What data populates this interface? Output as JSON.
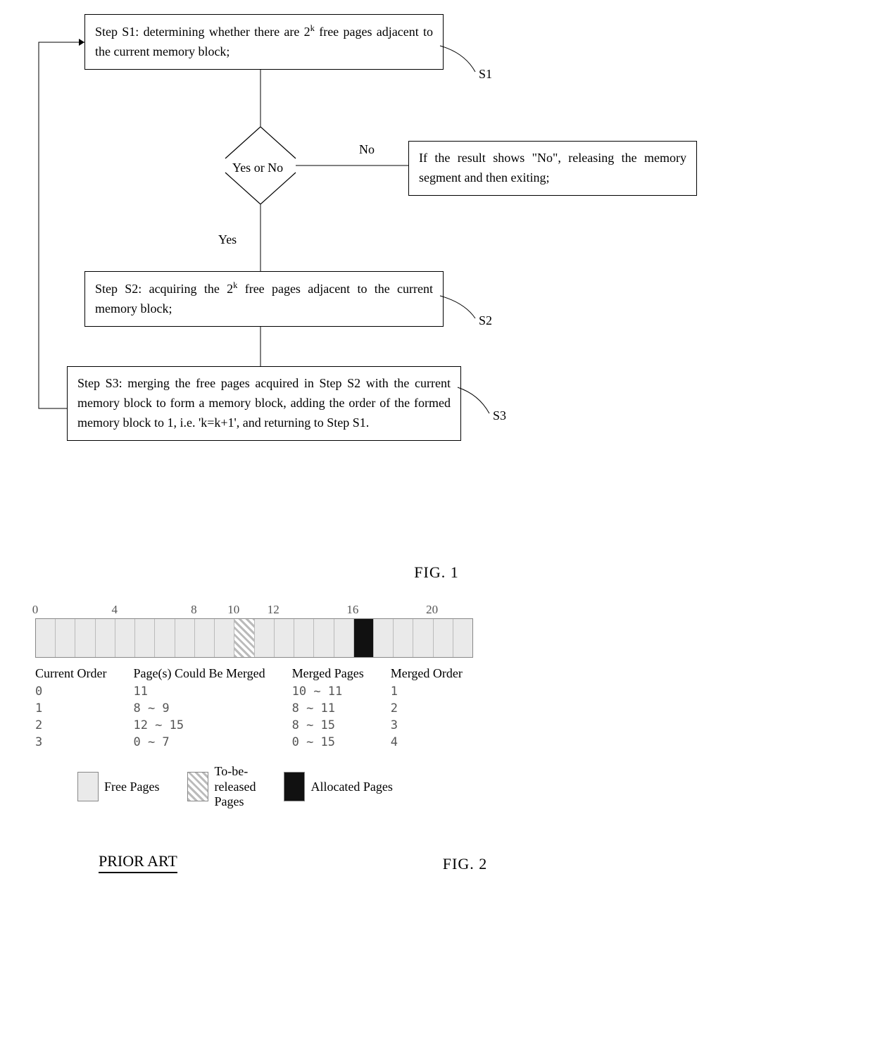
{
  "flow": {
    "s1": {
      "text_a": "Step S1: determining whether there are 2",
      "text_sup": "k",
      "text_b": " free pages adjacent to the current memory block;",
      "label": "S1"
    },
    "decision": {
      "label": "Yes or No",
      "yes": "Yes",
      "no": "No"
    },
    "no_box": "If the result shows \"No\", releasing the memory segment and then exiting;",
    "s2": {
      "text_a": "Step S2: acquiring the 2",
      "text_sup": "k",
      "text_b": " free pages adjacent to the current memory block;",
      "label": "S2"
    },
    "s3": {
      "text": "Step S3: merging the free pages acquired in Step S2 with the current memory block to form a memory block, adding the order of the formed memory block to 1, i.e. 'k=k+1', and returning to Step S1.",
      "label": "S3"
    }
  },
  "fig1_label": "FIG. 1",
  "memory": {
    "ticks": [
      {
        "v": "0",
        "pct": 0
      },
      {
        "v": "4",
        "pct": 18.18
      },
      {
        "v": "8",
        "pct": 36.36
      },
      {
        "v": "10",
        "pct": 45.45
      },
      {
        "v": "12",
        "pct": 54.55
      },
      {
        "v": "16",
        "pct": 72.73
      },
      {
        "v": "20",
        "pct": 90.91
      }
    ],
    "cells": [
      "free",
      "free",
      "free",
      "free",
      "free",
      "free",
      "free",
      "free",
      "free",
      "free",
      "tbr",
      "free",
      "free",
      "free",
      "free",
      "free",
      "alloc",
      "free",
      "free",
      "free",
      "free",
      "free"
    ],
    "headers": [
      "Current Order",
      "Page(s) Could Be Merged",
      "Merged Pages",
      "Merged Order"
    ],
    "rows": [
      [
        "0",
        "11",
        "10 ~ 11",
        "1"
      ],
      [
        "1",
        "8 ~ 9",
        "8 ~ 11",
        "2"
      ],
      [
        "2",
        "12 ~ 15",
        "8 ~ 15",
        "3"
      ],
      [
        "3",
        "0 ~ 7",
        "0 ~ 15",
        "4"
      ]
    ],
    "legend": {
      "free": "Free Pages",
      "tbr": "To-be-\nreleased\nPages",
      "alloc": "Allocated Pages"
    }
  },
  "fig2_label": "FIG. 2",
  "prior_art": "PRIOR ART"
}
